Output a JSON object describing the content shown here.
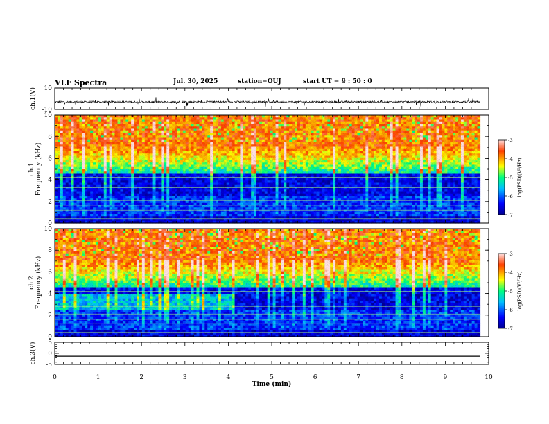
{
  "header": {
    "title": "VLF Spectra",
    "date": "Jul. 30, 2025",
    "station": "station=OUJ",
    "start": "start UT =  9 : 50 : 0"
  },
  "chart_data": [
    {
      "type": "line",
      "panel": "ch1",
      "ylabel": "ch.1(V)",
      "ylim": [
        -10,
        10
      ],
      "yticks": [
        10,
        -10
      ],
      "x": [
        0,
        1,
        2,
        3,
        4,
        5,
        6,
        7,
        8,
        9,
        9.8
      ],
      "values": [
        -3,
        -3,
        -3,
        -3,
        -3,
        -3,
        -3,
        -3,
        -3,
        -3,
        -3
      ],
      "note_noise": "dense spiky signal around -3 V"
    },
    {
      "type": "heatmap",
      "panel": "ch1-spectrogram",
      "ylabel": "ch.1\nFrequency (kHz)",
      "ylim": [
        0,
        10
      ],
      "yticks": [
        0,
        2,
        4,
        6,
        8,
        10
      ],
      "xlim": [
        0,
        10
      ],
      "data_end_min": 9.8,
      "colorbar": {
        "ticks": [
          "-3",
          "-4",
          "-5",
          "-6",
          "-7"
        ],
        "label": "log(PSD)(V²/Hz)"
      }
    },
    {
      "type": "heatmap",
      "panel": "ch2-spectrogram",
      "ylabel": "ch.2\nFrequency (kHz)",
      "ylim": [
        0,
        10
      ],
      "yticks": [
        0,
        2,
        4,
        6,
        8,
        10
      ],
      "xlim": [
        0,
        10
      ],
      "data_end_min": 9.8,
      "colorbar": {
        "ticks": [
          "-3",
          "-4",
          "-5",
          "-6",
          "-7"
        ],
        "label": "log(PSD)(V²/Hz)"
      }
    },
    {
      "type": "line",
      "panel": "ch3",
      "ylabel": "ch.3(V)",
      "ylim": [
        -5,
        5
      ],
      "yticks": [
        5,
        0,
        -5
      ],
      "x": [
        0,
        9.8
      ],
      "values": [
        -1.3,
        -1.3
      ]
    }
  ],
  "xaxis": {
    "label": "Time (min)",
    "ticks": [
      "0",
      "1",
      "2",
      "3",
      "4",
      "5",
      "6",
      "7",
      "8",
      "9",
      "10"
    ]
  }
}
